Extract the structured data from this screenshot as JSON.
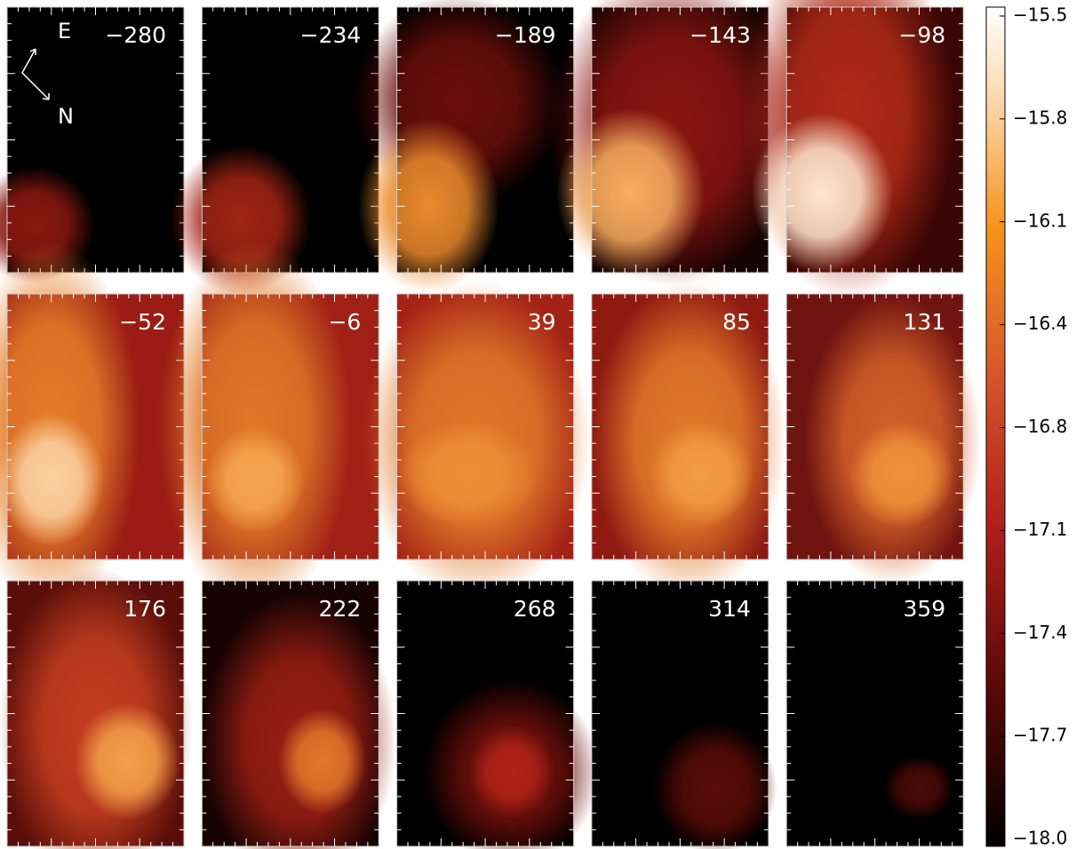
{
  "panels": [
    {
      "label": "−280"
    },
    {
      "label": "−234"
    },
    {
      "label": "−189"
    },
    {
      "label": "−143"
    },
    {
      "label": "−98"
    },
    {
      "label": "−52"
    },
    {
      "label": "−6"
    },
    {
      "label": "39"
    },
    {
      "label": "85"
    },
    {
      "label": "131"
    },
    {
      "label": "176"
    },
    {
      "label": "222"
    },
    {
      "label": "268"
    },
    {
      "label": "314"
    },
    {
      "label": "359"
    }
  ],
  "compass": {
    "east": "E",
    "north": "N"
  },
  "colorbar": {
    "lim": [
      -18.0,
      -15.5
    ],
    "ticks": [
      {
        "value": -15.5,
        "label": "−15.5"
      },
      {
        "value": -15.8125,
        "label": "−15.8"
      },
      {
        "value": -16.125,
        "label": "−16.1"
      },
      {
        "value": -16.4375,
        "label": "−16.4"
      },
      {
        "value": -16.75,
        "label": "−16.8"
      },
      {
        "value": -17.0625,
        "label": "−17.1"
      },
      {
        "value": -17.375,
        "label": "−17.4"
      },
      {
        "value": -17.6875,
        "label": "−17.7"
      },
      {
        "value": -18.0,
        "label": "−18.0"
      }
    ]
  }
}
